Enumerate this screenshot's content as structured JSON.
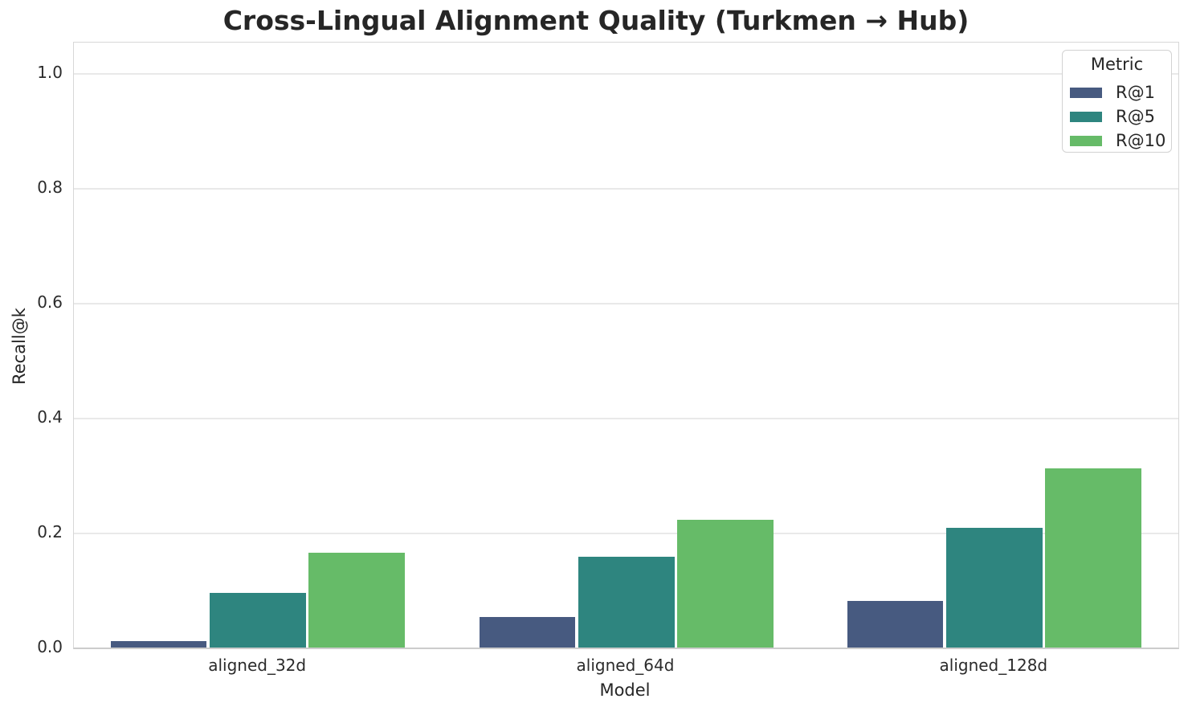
{
  "chart_data": {
    "type": "bar",
    "title": "Cross-Lingual Alignment Quality (Turkmen → Hub)",
    "xlabel": "Model",
    "ylabel": "Recall@k",
    "categories": [
      "aligned_32d",
      "aligned_64d",
      "aligned_128d"
    ],
    "series": [
      {
        "name": "R@1",
        "color": "#475a80",
        "values": [
          0.011,
          0.053,
          0.081
        ]
      },
      {
        "name": "R@5",
        "color": "#2e857f",
        "values": [
          0.095,
          0.158,
          0.209
        ]
      },
      {
        "name": "R@10",
        "color": "#66bb68",
        "values": [
          0.165,
          0.222,
          0.312
        ]
      }
    ],
    "legend_title": "Metric",
    "legend_position": "upper right",
    "yticks": [
      "0.0",
      "0.2",
      "0.4",
      "0.6",
      "0.8",
      "1.0"
    ],
    "ylim": [
      0,
      1.053
    ],
    "grid": "horizontal"
  },
  "colors": {
    "text": "#262626",
    "grid": "#e9e9e9",
    "spine": "#d7d7d7",
    "background": "#ffffff"
  }
}
